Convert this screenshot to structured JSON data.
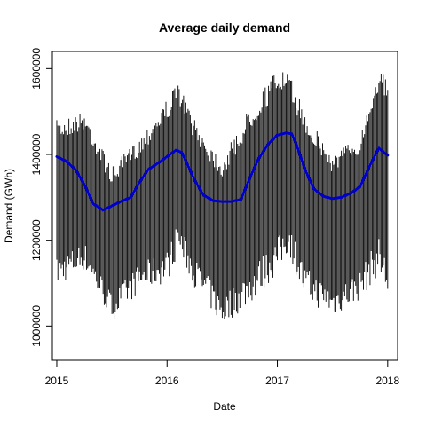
{
  "chart_data": {
    "type": "line",
    "title": "Average daily demand",
    "xlabel": "Date",
    "ylabel": "Demand (GWh)",
    "x_ticks": [
      2015,
      2016,
      2017,
      2018
    ],
    "y_ticks": [
      1000000,
      1200000,
      1400000,
      1600000
    ],
    "y_tick_labels": [
      "1000000",
      "1200000",
      "1400000",
      "1600000"
    ],
    "xlim": [
      2014.96,
      2018.09
    ],
    "ylim": [
      920000,
      1640000
    ],
    "colors": {
      "daily": "#000000",
      "trend": "#0000cd"
    },
    "series": [
      {
        "kind": "daily_range",
        "x": [
          2015.0,
          2015.25,
          2015.5,
          2015.75,
          2016.0,
          2016.1,
          2016.25,
          2016.5,
          2016.75,
          2017.0,
          2017.1,
          2017.25,
          2017.5,
          2017.75,
          2017.92,
          2018.0
        ],
        "upper": [
          1480000,
          1500000,
          1370000,
          1440000,
          1530000,
          1570000,
          1480000,
          1390000,
          1510000,
          1600000,
          1590000,
          1500000,
          1400000,
          1450000,
          1610000,
          1570000
        ],
        "lower": [
          1090000,
          1130000,
          1010000,
          1080000,
          1100000,
          1170000,
          1090000,
          1000000,
          1050000,
          1120000,
          1170000,
          1060000,
          1020000,
          1060000,
          1120000,
          1060000
        ]
      },
      {
        "kind": "trend",
        "x": [
          2015.0,
          2015.08,
          2015.17,
          2015.25,
          2015.33,
          2015.42,
          2015.5,
          2015.58,
          2015.67,
          2015.75,
          2015.83,
          2015.92,
          2016.0,
          2016.08,
          2016.13,
          2016.17,
          2016.25,
          2016.33,
          2016.42,
          2016.5,
          2016.58,
          2016.67,
          2016.75,
          2016.83,
          2016.92,
          2017.0,
          2017.08,
          2017.13,
          2017.17,
          2017.25,
          2017.33,
          2017.42,
          2017.5,
          2017.58,
          2017.67,
          2017.75,
          2017.83,
          2017.92,
          2018.0
        ],
        "y": [
          1395000,
          1385000,
          1365000,
          1330000,
          1285000,
          1270000,
          1280000,
          1290000,
          1300000,
          1335000,
          1365000,
          1380000,
          1395000,
          1410000,
          1405000,
          1385000,
          1340000,
          1305000,
          1292000,
          1290000,
          1290000,
          1295000,
          1345000,
          1390000,
          1425000,
          1445000,
          1450000,
          1448000,
          1425000,
          1365000,
          1320000,
          1302000,
          1297000,
          1300000,
          1310000,
          1325000,
          1370000,
          1415000,
          1398000
        ]
      }
    ]
  }
}
